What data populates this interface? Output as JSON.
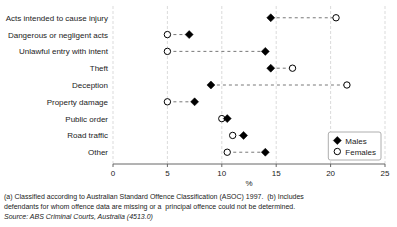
{
  "chart_data": {
    "type": "dot",
    "categories": [
      "Acts intended to cause injury",
      "Dangerous or negligent acts",
      "Unlawful entry with intent",
      "Theft",
      "Deception",
      "Property damage",
      "Public order",
      "Road traffic",
      "Other"
    ],
    "series": [
      {
        "name": "Males",
        "color": "#000000",
        "marker": "diamond",
        "values": [
          14.5,
          7.0,
          14.0,
          14.5,
          9.0,
          7.5,
          10.5,
          12.0,
          14.0
        ]
      },
      {
        "name": "Females",
        "color": "#000000",
        "marker": "circle",
        "values": [
          20.5,
          5.0,
          5.0,
          16.5,
          21.5,
          5.0,
          10.0,
          11.0,
          10.5
        ]
      }
    ],
    "x_label": "%",
    "xlim": [
      0,
      25
    ],
    "xticks": [
      0,
      5,
      10,
      15,
      20,
      25
    ],
    "grid": true,
    "legend": "lower right",
    "annotations": [
      "(a) Classified according to Australian Standard Offence Classification (ASOC) 1997.  (b) Includes",
      "defendants for whom offence data are missing or a  principal offence could not be determined.",
      "Source: ABS Criminal Courts, Australia (4513.0)"
    ]
  }
}
